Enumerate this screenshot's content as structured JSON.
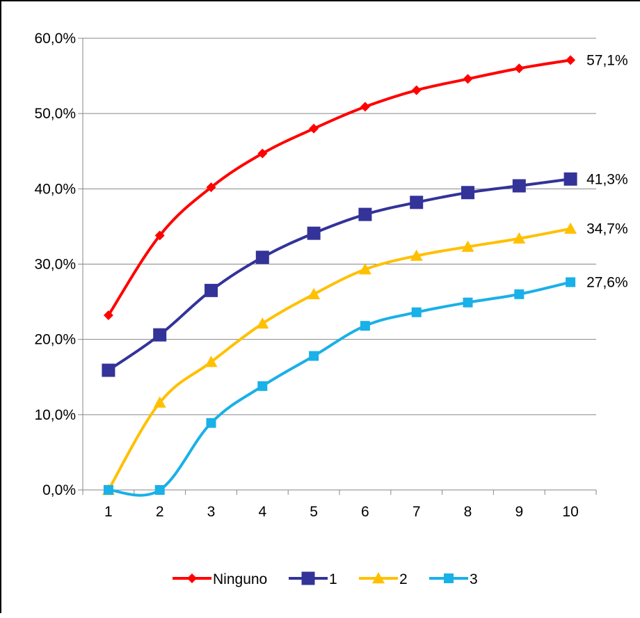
{
  "chart_data": {
    "type": "line",
    "title": "",
    "xlabel": "",
    "ylabel": "",
    "x": [
      1,
      2,
      3,
      4,
      5,
      6,
      7,
      8,
      9,
      10
    ],
    "x_tick_labels": [
      "1",
      "2",
      "3",
      "4",
      "5",
      "6",
      "7",
      "8",
      "9",
      "10"
    ],
    "ylim": [
      0,
      60
    ],
    "y_tick_labels": [
      "0,0%",
      "10,0%",
      "20,0%",
      "30,0%",
      "40,0%",
      "50,0%",
      "60,0%"
    ],
    "grid": "horizontal",
    "legend_position": "bottom",
    "series": [
      {
        "name": "Ninguno",
        "color": "#ff0000",
        "marker": "diamond",
        "values": [
          23.2,
          33.8,
          40.2,
          44.7,
          48.0,
          50.9,
          53.1,
          54.6,
          56.0,
          57.1
        ],
        "end_label": "57,1%"
      },
      {
        "name": "1",
        "color": "#333399",
        "marker": "square",
        "values": [
          15.9,
          20.6,
          26.5,
          30.9,
          34.1,
          36.6,
          38.2,
          39.5,
          40.4,
          41.3
        ],
        "end_label": "41,3%"
      },
      {
        "name": "2",
        "color": "#ffc000",
        "marker": "triangle",
        "values": [
          0.0,
          11.6,
          17.0,
          22.1,
          26.0,
          29.3,
          31.1,
          32.3,
          33.4,
          34.7
        ],
        "end_label": "34,7%"
      },
      {
        "name": "3",
        "color": "#1ab0e8",
        "marker": "square-small",
        "values": [
          0.0,
          0.0,
          8.9,
          13.8,
          17.8,
          21.8,
          23.6,
          24.9,
          26.0,
          27.6
        ],
        "end_label": "27,6%"
      }
    ]
  }
}
